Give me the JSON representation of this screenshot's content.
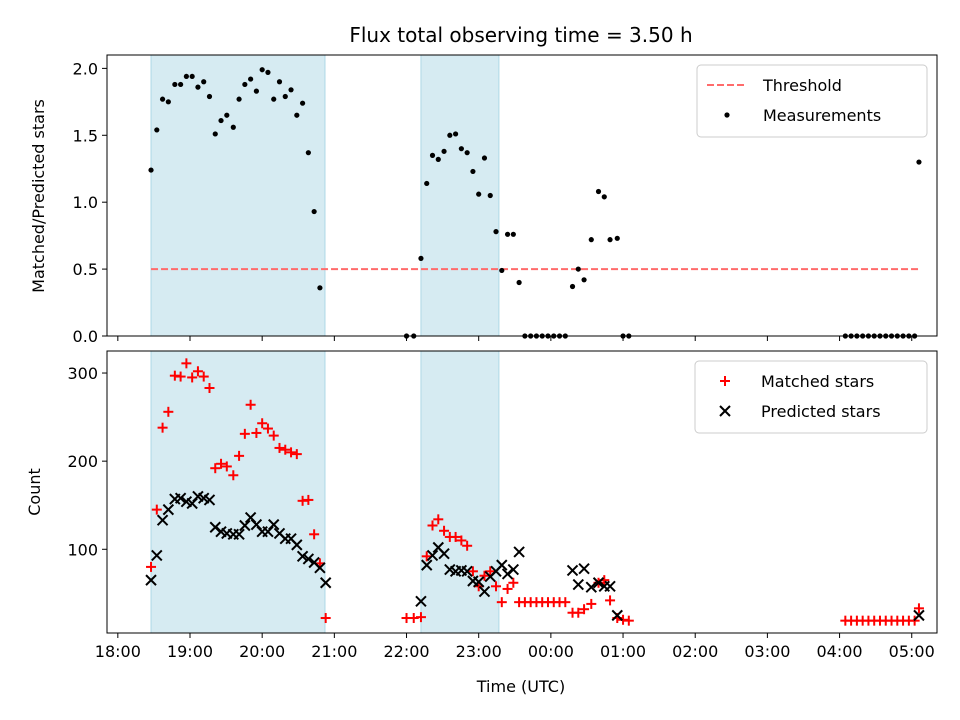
{
  "chart_data": {
    "title": "Flux total observing time = 3.50 h",
    "xlabel": "Time (UTC)",
    "x_range": [
      -0.15,
      11.35
    ],
    "x_ticks": [
      {
        "x": 0,
        "label": "18:00"
      },
      {
        "x": 1,
        "label": "19:00"
      },
      {
        "x": 2,
        "label": "20:00"
      },
      {
        "x": 3,
        "label": "21:00"
      },
      {
        "x": 4,
        "label": "22:00"
      },
      {
        "x": 5,
        "label": "23:00"
      },
      {
        "x": 6,
        "label": "00:00"
      },
      {
        "x": 7,
        "label": "01:00"
      },
      {
        "x": 8,
        "label": "02:00"
      },
      {
        "x": 9,
        "label": "03:00"
      },
      {
        "x": 10,
        "label": "04:00"
      },
      {
        "x": 11,
        "label": "05:00"
      }
    ],
    "shaded_intervals": [
      [
        0.46,
        2.87
      ],
      [
        4.2,
        5.28
      ]
    ],
    "shade_color": "#add8e6",
    "panels": [
      {
        "type": "scatter",
        "ylabel": "Matched/Predicted stars",
        "ylim": [
          0,
          2.1
        ],
        "y_ticks": [
          {
            "y": 0,
            "label": "0.0"
          },
          {
            "y": 0.5,
            "label": "0.5"
          },
          {
            "y": 1.0,
            "label": "1.0"
          },
          {
            "y": 1.5,
            "label": "1.5"
          },
          {
            "y": 2.0,
            "label": "2.0"
          }
        ],
        "threshold": {
          "value": 0.5,
          "x_start": 0.46,
          "x_end": 11.1,
          "color": "#ff6b6b"
        },
        "legend": {
          "position": "top-right",
          "entries": [
            {
              "label": "Threshold",
              "marker": "dash"
            },
            {
              "label": "Measurements",
              "marker": "dot"
            }
          ]
        },
        "series": [
          {
            "name": "Measurements",
            "color": "#000000",
            "marker": "dot",
            "points": [
              [
                0.46,
                1.24
              ],
              [
                0.54,
                1.54
              ],
              [
                0.62,
                1.77
              ],
              [
                0.7,
                1.75
              ],
              [
                0.79,
                1.88
              ],
              [
                0.87,
                1.88
              ],
              [
                0.95,
                1.94
              ],
              [
                1.03,
                1.94
              ],
              [
                1.11,
                1.86
              ],
              [
                1.19,
                1.9
              ],
              [
                1.27,
                1.79
              ],
              [
                1.35,
                1.51
              ],
              [
                1.43,
                1.61
              ],
              [
                1.51,
                1.65
              ],
              [
                1.6,
                1.56
              ],
              [
                1.68,
                1.77
              ],
              [
                1.76,
                1.88
              ],
              [
                1.84,
                1.92
              ],
              [
                1.92,
                1.83
              ],
              [
                2.0,
                1.99
              ],
              [
                2.08,
                1.97
              ],
              [
                2.16,
                1.77
              ],
              [
                2.24,
                1.9
              ],
              [
                2.32,
                1.79
              ],
              [
                2.4,
                1.84
              ],
              [
                2.48,
                1.65
              ],
              [
                2.56,
                1.74
              ],
              [
                2.64,
                1.37
              ],
              [
                2.72,
                0.93
              ],
              [
                2.8,
                0.36
              ],
              [
                4.0,
                0
              ],
              [
                4.1,
                0
              ],
              [
                4.2,
                0.58
              ],
              [
                4.28,
                1.14
              ],
              [
                4.36,
                1.35
              ],
              [
                4.44,
                1.32
              ],
              [
                4.52,
                1.38
              ],
              [
                4.6,
                1.5
              ],
              [
                4.68,
                1.51
              ],
              [
                4.76,
                1.4
              ],
              [
                4.84,
                1.37
              ],
              [
                4.92,
                1.23
              ],
              [
                5.0,
                1.06
              ],
              [
                5.08,
                1.33
              ],
              [
                5.16,
                1.05
              ],
              [
                5.24,
                0.78
              ],
              [
                5.32,
                0.49
              ],
              [
                5.4,
                0.76
              ],
              [
                5.48,
                0.76
              ],
              [
                5.56,
                0.4
              ],
              [
                5.64,
                0
              ],
              [
                5.72,
                0
              ],
              [
                5.8,
                0
              ],
              [
                5.88,
                0
              ],
              [
                5.96,
                0
              ],
              [
                6.04,
                0
              ],
              [
                6.12,
                0
              ],
              [
                6.2,
                0
              ],
              [
                6.3,
                0.37
              ],
              [
                6.38,
                0.5
              ],
              [
                6.46,
                0.42
              ],
              [
                6.56,
                0.72
              ],
              [
                6.66,
                1.08
              ],
              [
                6.74,
                1.04
              ],
              [
                6.82,
                0.72
              ],
              [
                6.92,
                0.73
              ],
              [
                7.0,
                0
              ],
              [
                7.08,
                0
              ],
              [
                10.08,
                0
              ],
              [
                10.16,
                0
              ],
              [
                10.24,
                0
              ],
              [
                10.32,
                0
              ],
              [
                10.4,
                0
              ],
              [
                10.48,
                0
              ],
              [
                10.56,
                0
              ],
              [
                10.64,
                0
              ],
              [
                10.72,
                0
              ],
              [
                10.8,
                0
              ],
              [
                10.88,
                0
              ],
              [
                10.96,
                0
              ],
              [
                11.04,
                0
              ],
              [
                11.1,
                1.3
              ]
            ]
          }
        ]
      },
      {
        "type": "scatter",
        "ylabel": "Count",
        "ylim": [
          5,
          325
        ],
        "y_ticks": [
          {
            "y": 100,
            "label": "100"
          },
          {
            "y": 200,
            "label": "200"
          },
          {
            "y": 300,
            "label": "300"
          }
        ],
        "legend": {
          "position": "top-right",
          "entries": [
            {
              "label": "Matched stars",
              "marker": "plus"
            },
            {
              "label": "Predicted stars",
              "marker": "cross"
            }
          ]
        },
        "series": [
          {
            "name": "Matched stars",
            "color": "#ff0000",
            "marker": "plus",
            "points": [
              [
                0.46,
                80
              ],
              [
                0.54,
                145
              ],
              [
                0.62,
                238
              ],
              [
                0.7,
                256
              ],
              [
                0.79,
                297
              ],
              [
                0.87,
                296
              ],
              [
                0.95,
                311
              ],
              [
                1.03,
                295
              ],
              [
                1.11,
                302
              ],
              [
                1.19,
                296
              ],
              [
                1.27,
                283
              ],
              [
                1.35,
                192
              ],
              [
                1.43,
                197
              ],
              [
                1.51,
                194
              ],
              [
                1.6,
                184
              ],
              [
                1.68,
                206
              ],
              [
                1.76,
                231
              ],
              [
                1.84,
                264
              ],
              [
                1.92,
                232
              ],
              [
                2.0,
                243
              ],
              [
                2.08,
                237
              ],
              [
                2.16,
                229
              ],
              [
                2.24,
                215
              ],
              [
                2.32,
                213
              ],
              [
                2.4,
                210
              ],
              [
                2.48,
                208
              ],
              [
                2.56,
                155
              ],
              [
                2.64,
                156
              ],
              [
                2.72,
                117
              ],
              [
                2.8,
                84
              ],
              [
                2.88,
                22
              ],
              [
                4.0,
                22
              ],
              [
                4.1,
                22
              ],
              [
                4.2,
                23
              ],
              [
                4.28,
                92
              ],
              [
                4.36,
                127
              ],
              [
                4.44,
                134
              ],
              [
                4.52,
                121
              ],
              [
                4.6,
                114
              ],
              [
                4.68,
                114
              ],
              [
                4.76,
                110
              ],
              [
                4.84,
                104
              ],
              [
                4.92,
                75
              ],
              [
                5.0,
                58
              ],
              [
                5.08,
                70
              ],
              [
                5.16,
                75
              ],
              [
                5.24,
                58
              ],
              [
                5.32,
                40
              ],
              [
                5.4,
                55
              ],
              [
                5.48,
                62
              ],
              [
                5.56,
                40
              ],
              [
                5.64,
                40
              ],
              [
                5.72,
                40
              ],
              [
                5.8,
                40
              ],
              [
                5.88,
                40
              ],
              [
                5.96,
                40
              ],
              [
                6.04,
                40
              ],
              [
                6.12,
                40
              ],
              [
                6.2,
                40
              ],
              [
                6.3,
                28
              ],
              [
                6.38,
                28
              ],
              [
                6.46,
                32
              ],
              [
                6.56,
                38
              ],
              [
                6.66,
                62
              ],
              [
                6.74,
                65
              ],
              [
                6.82,
                42
              ],
              [
                6.92,
                22
              ],
              [
                7.0,
                20
              ],
              [
                7.08,
                19
              ],
              [
                10.08,
                19
              ],
              [
                10.16,
                19
              ],
              [
                10.24,
                19
              ],
              [
                10.32,
                19
              ],
              [
                10.4,
                19
              ],
              [
                10.48,
                19
              ],
              [
                10.56,
                19
              ],
              [
                10.64,
                19
              ],
              [
                10.72,
                19
              ],
              [
                10.8,
                19
              ],
              [
                10.88,
                19
              ],
              [
                10.96,
                19
              ],
              [
                11.04,
                19
              ],
              [
                11.1,
                33
              ]
            ]
          },
          {
            "name": "Predicted stars",
            "color": "#000000",
            "marker": "cross",
            "points": [
              [
                0.46,
                65
              ],
              [
                0.54,
                93
              ],
              [
                0.62,
                133
              ],
              [
                0.7,
                145
              ],
              [
                0.79,
                157
              ],
              [
                0.87,
                158
              ],
              [
                0.95,
                154
              ],
              [
                1.03,
                152
              ],
              [
                1.11,
                160
              ],
              [
                1.19,
                158
              ],
              [
                1.27,
                156
              ],
              [
                1.35,
                125
              ],
              [
                1.43,
                120
              ],
              [
                1.51,
                118
              ],
              [
                1.6,
                117
              ],
              [
                1.68,
                117
              ],
              [
                1.76,
                127
              ],
              [
                1.84,
                136
              ],
              [
                1.92,
                128
              ],
              [
                2.0,
                120
              ],
              [
                2.08,
                120
              ],
              [
                2.16,
                128
              ],
              [
                2.24,
                118
              ],
              [
                2.32,
                112
              ],
              [
                2.4,
                112
              ],
              [
                2.48,
                105
              ],
              [
                2.56,
                92
              ],
              [
                2.64,
                89
              ],
              [
                2.72,
                85
              ],
              [
                2.8,
                79
              ],
              [
                2.88,
                62
              ],
              [
                4.2,
                41
              ],
              [
                4.28,
                82
              ],
              [
                4.36,
                93
              ],
              [
                4.44,
                102
              ],
              [
                4.52,
                95
              ],
              [
                4.6,
                77
              ],
              [
                4.68,
                75
              ],
              [
                4.76,
                76
              ],
              [
                4.84,
                75
              ],
              [
                4.92,
                64
              ],
              [
                5.0,
                63
              ],
              [
                5.08,
                52
              ],
              [
                5.16,
                69
              ],
              [
                5.24,
                75
              ],
              [
                5.32,
                82
              ],
              [
                5.4,
                72
              ],
              [
                5.48,
                77
              ],
              [
                5.56,
                97
              ],
              [
                6.3,
                76
              ],
              [
                6.38,
                60
              ],
              [
                6.46,
                78
              ],
              [
                6.56,
                57
              ],
              [
                6.66,
                62
              ],
              [
                6.74,
                58
              ],
              [
                6.82,
                58
              ],
              [
                6.92,
                25
              ],
              [
                11.1,
                25
              ]
            ]
          }
        ]
      }
    ]
  }
}
